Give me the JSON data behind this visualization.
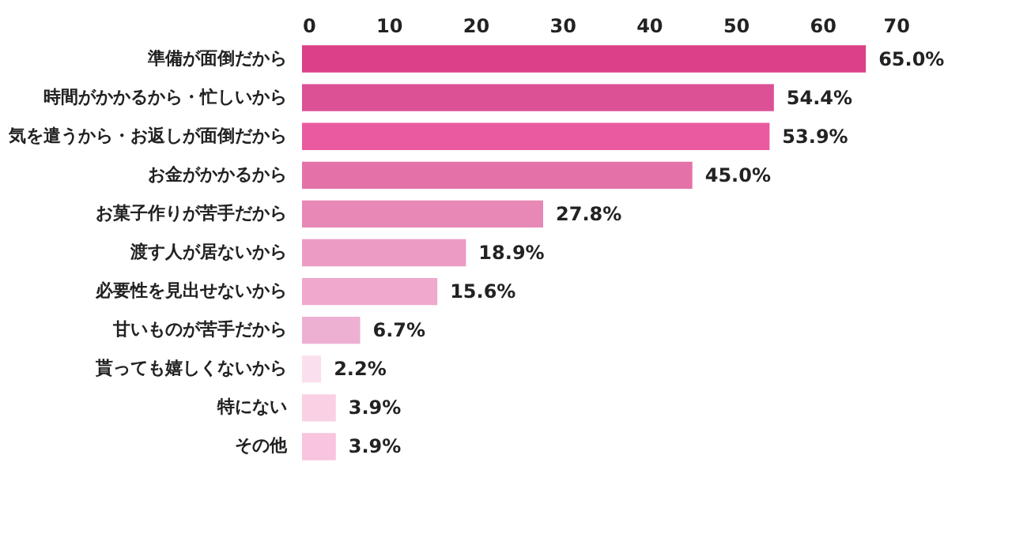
{
  "chart_data": {
    "type": "bar",
    "orientation": "horizontal",
    "categories": [
      "準備が面倒だから",
      "時間がかかるから・忙しいから",
      "気を遣うから・お返しが面倒だから",
      "お金がかかるから",
      "お菓子作りが苦手だから",
      "渡す人が居ないから",
      "必要性を見出せないから",
      "甘いものが苦手だから",
      "貰っても嬉しくないから",
      "特にない",
      "その他"
    ],
    "values": [
      65.0,
      54.4,
      53.9,
      45.0,
      27.8,
      18.9,
      15.6,
      6.7,
      2.2,
      3.9,
      3.9
    ],
    "value_labels": [
      "65.0%",
      "54.4%",
      "53.9%",
      "45.0%",
      "27.8%",
      "18.9%",
      "15.6%",
      "6.7%",
      "2.2%",
      "3.9%",
      "3.9%"
    ],
    "colors": [
      "#dc4088",
      "#dc5096",
      "#ea5aa0",
      "#e472a8",
      "#e888b6",
      "#ec9cc4",
      "#f0a8cc",
      "#eeb0d2",
      "#fae0ee",
      "#fad0e4",
      "#f8c4de"
    ],
    "xlim": [
      0,
      70
    ],
    "xticks": [
      0,
      10,
      20,
      30,
      40,
      50,
      60,
      70
    ],
    "grid": false
  }
}
